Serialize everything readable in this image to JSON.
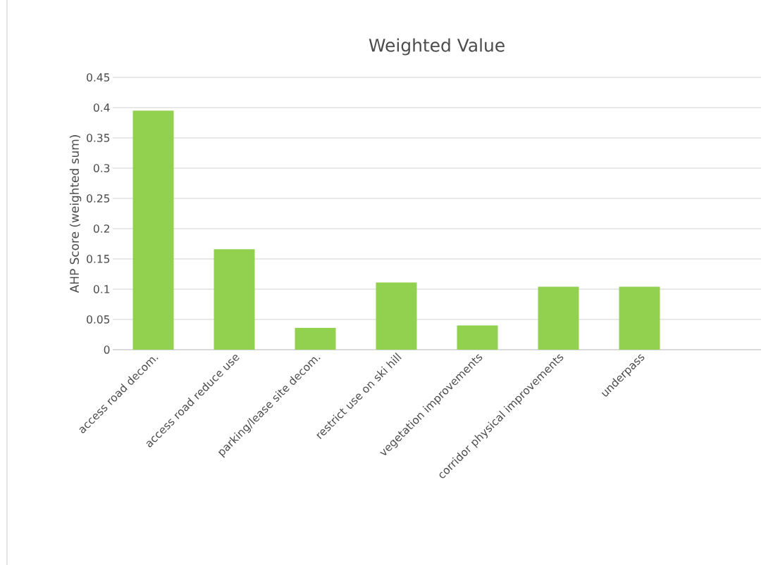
{
  "chart_data": {
    "type": "bar",
    "title": "Weighted Value",
    "ylabel": "AHP Score (weighted sum)",
    "categories": [
      "access road decom.",
      "access road reduce use",
      "parking/lease site decom.",
      "restrict use on ski hill",
      "vegetation improvements",
      "corridor physical improvements",
      "underpass",
      null
    ],
    "values": [
      0.395,
      0.166,
      0.036,
      0.111,
      0.04,
      0.104,
      0.104,
      null
    ],
    "color": "#92d050",
    "ylim": [
      0,
      0.45
    ],
    "yticks": [
      0,
      0.05,
      0.1,
      0.15,
      0.2,
      0.25,
      0.3,
      0.35,
      0.4,
      0.45
    ],
    "grid": "y"
  }
}
